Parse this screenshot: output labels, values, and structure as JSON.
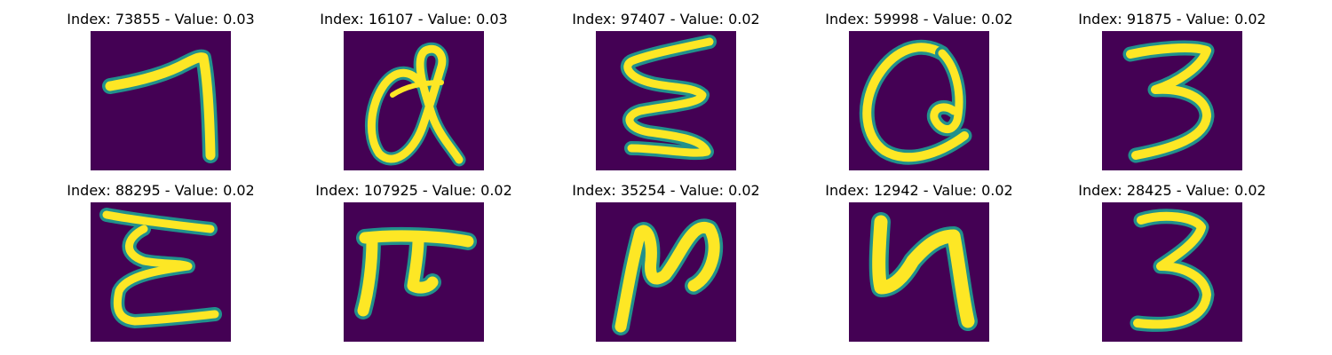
{
  "colors": {
    "background": "#440154",
    "mid": "#21918c",
    "stroke": "#fde725",
    "edge": "#5ec962"
  },
  "panels": [
    {
      "index": "73855",
      "value": "0.03",
      "title": "Index: 73855 - Value: 0.03",
      "glyph": "seven-like-stroke"
    },
    {
      "index": "16107",
      "value": "0.03",
      "title": "Index: 16107 - Value: 0.03",
      "glyph": "looped-a-like-stroke"
    },
    {
      "index": "97407",
      "value": "0.02",
      "title": "Index: 97407 - Value: 0.02",
      "glyph": "zigzag-e-like-stroke"
    },
    {
      "index": "59998",
      "value": "0.02",
      "title": "Index: 59998 - Value: 0.02",
      "glyph": "round-a-like-stroke"
    },
    {
      "index": "91875",
      "value": "0.02",
      "title": "Index: 91875 - Value: 0.02",
      "glyph": "three-like-stroke"
    },
    {
      "index": "88295",
      "value": "0.02",
      "title": "Index: 88295 - Value: 0.02",
      "glyph": "sigma-e-like-stroke"
    },
    {
      "index": "107925",
      "value": "0.02",
      "title": "Index: 107925 - Value: 0.02",
      "glyph": "pi-like-stroke"
    },
    {
      "index": "35254",
      "value": "0.02",
      "title": "Index: 35254 - Value: 0.02",
      "glyph": "n-like-stroke"
    },
    {
      "index": "12942",
      "value": "0.02",
      "title": "Index: 12942 - Value: 0.02",
      "glyph": "four-like-stroke"
    },
    {
      "index": "28425",
      "value": "0.02",
      "title": "Index: 28425 - Value: 0.02",
      "glyph": "three-like-stroke"
    }
  ]
}
